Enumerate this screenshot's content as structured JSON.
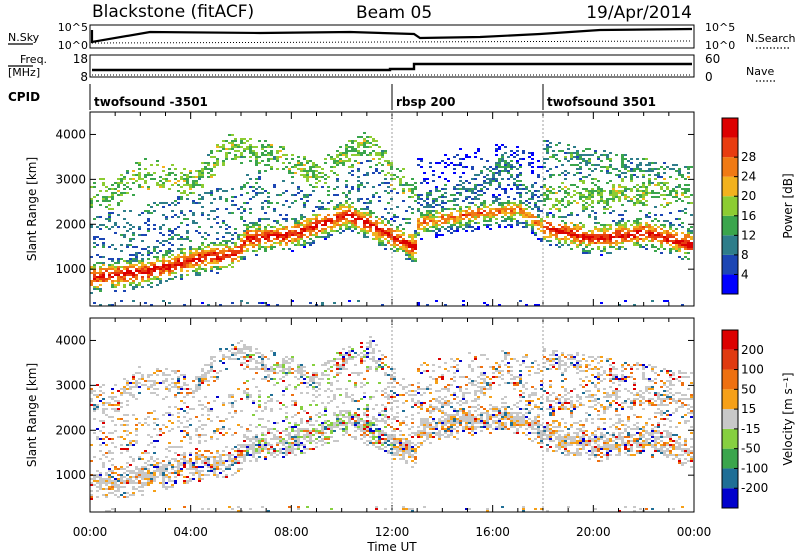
{
  "header": {
    "title": "Blackstone (fitACF)",
    "beam": "Beam 05",
    "date": "19/Apr/2014"
  },
  "panel_sky": {
    "left_label": "N.Sky",
    "left_ticks": [
      "10^5",
      "10^0"
    ],
    "right_ticks": [
      "10^5",
      "10^0"
    ],
    "right_label": "N.Search"
  },
  "panel_freq": {
    "left_label_1": "Freq.",
    "left_label_2": "[MHz]",
    "left_ticks": [
      "18",
      "8"
    ],
    "right_ticks": [
      "60",
      "0"
    ],
    "right_label": "Nave"
  },
  "cpid": {
    "label": "CPID",
    "segments": [
      {
        "name": "twofsound -3501",
        "start_h": 0
      },
      {
        "name": "rbsp 200",
        "start_h": 12.0
      },
      {
        "name": "twofsound 3501",
        "start_h": 18.0
      }
    ]
  },
  "chart_data": [
    {
      "type": "heatmap",
      "quantity": "Power",
      "ylabel": "Slant Range [km]",
      "ylim": [
        180,
        4500
      ],
      "yticks": [
        "1000",
        "2000",
        "3000",
        "4000"
      ],
      "xlim_hours": [
        0,
        24
      ],
      "colorbar": {
        "label": "Power [dB]",
        "ticks": [
          "4",
          "8",
          "12",
          "16",
          "20",
          "24",
          "28"
        ],
        "colors": [
          "#0000ff",
          "#1c46b4",
          "#2e7d8a",
          "#3aa54c",
          "#8ccc32",
          "#f2b21e",
          "#f07a14",
          "#e83c10",
          "#dc0000"
        ]
      }
    },
    {
      "type": "heatmap",
      "quantity": "Velocity",
      "ylabel": "Slant Range [km]",
      "ylim": [
        180,
        4500
      ],
      "yticks": [
        "1000",
        "2000",
        "3000",
        "4000"
      ],
      "xlim_hours": [
        0,
        24
      ],
      "colorbar": {
        "label": "Velocity [m s⁻¹]",
        "ticks": [
          "200",
          "100",
          "50",
          "15",
          "-15",
          "-50",
          "-100",
          "-200"
        ],
        "colors": [
          "#0000cc",
          "#1f6e96",
          "#3aa54c",
          "#86d040",
          "#c8c8c8",
          "#f6a018",
          "#ee7010",
          "#e03a10",
          "#dc0000"
        ]
      }
    }
  ],
  "xaxis": {
    "ticks": [
      "00:00",
      "04:00",
      "08:00",
      "12:00",
      "16:00",
      "20:00",
      "00:00"
    ],
    "label": "Time UT"
  }
}
